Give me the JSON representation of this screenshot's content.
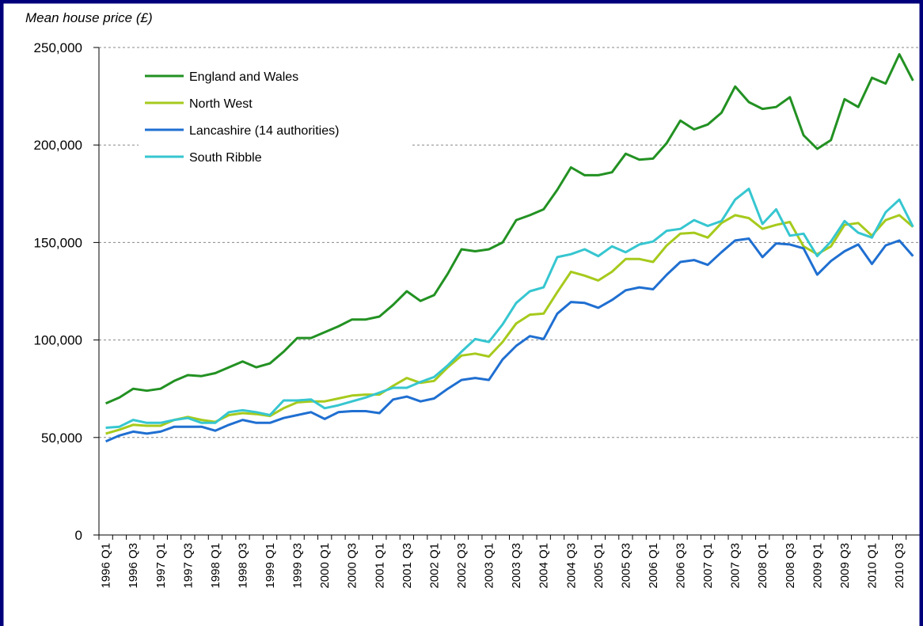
{
  "chart_data": {
    "type": "line",
    "y_axis_label": "Mean house price (£)",
    "categories": [
      "1996 Q1",
      null,
      "1996 Q3",
      null,
      "1997 Q1",
      null,
      "1997 Q3",
      null,
      "1998 Q1",
      null,
      "1998 Q3",
      null,
      "1999 Q1",
      null,
      "1999 Q3",
      null,
      "2000 Q1",
      null,
      "2000 Q3",
      null,
      "2001 Q1",
      null,
      "2001 Q3",
      null,
      "2002 Q1",
      null,
      "2002 Q3",
      null,
      "2003 Q1",
      null,
      "2003 Q3",
      null,
      "2004 Q1",
      null,
      "2004 Q3",
      null,
      "2005 Q1",
      null,
      "2005 Q3",
      null,
      "2006 Q1",
      null,
      "2006 Q3",
      null,
      "2007 Q1",
      null,
      "2007 Q3",
      null,
      "2008 Q1",
      null,
      "2008 Q3",
      null,
      "2009 Q1",
      null,
      "2009 Q3",
      null,
      "2010 Q1",
      null,
      "2010 Q3",
      null
    ],
    "series": [
      {
        "name": "England and Wales",
        "color": "#229122",
        "values": [
          67500,
          70500,
          75000,
          74000,
          75000,
          79000,
          82000,
          81500,
          83000,
          86000,
          89000,
          86000,
          88000,
          94000,
          101000,
          101000,
          104000,
          107000,
          110500,
          110500,
          112000,
          118000,
          125000,
          120000,
          123000,
          134000,
          146500,
          145500,
          146500,
          150000,
          161500,
          164000,
          167000,
          177000,
          188500,
          184500,
          184500,
          186000,
          195500,
          192500,
          193000,
          201000,
          212500,
          208000,
          210500,
          216500,
          230000,
          222000,
          218500,
          219500,
          224500,
          205000,
          198000,
          202500,
          223500,
          219500,
          234500,
          231500,
          246500,
          233000
        ]
      },
      {
        "name": "North West",
        "color": "#a6ca1c",
        "values": [
          52000,
          54000,
          56500,
          56000,
          56000,
          59000,
          60500,
          59000,
          58000,
          61500,
          62500,
          62000,
          61000,
          65000,
          68000,
          68500,
          68500,
          70000,
          71500,
          72000,
          72000,
          76500,
          80500,
          78000,
          79000,
          86000,
          92000,
          93000,
          91500,
          99000,
          108500,
          113000,
          113500,
          124500,
          135000,
          133000,
          130500,
          135000,
          141500,
          141500,
          140000,
          148500,
          154500,
          155000,
          152500,
          160000,
          164000,
          162500,
          157000,
          159000,
          160500,
          148000,
          144000,
          148000,
          159000,
          160000,
          153500,
          161500,
          164000,
          158000
        ]
      },
      {
        "name": "Lancashire (14 authorities)",
        "color": "#1f6fd1",
        "values": [
          48000,
          51000,
          53000,
          52000,
          53000,
          55500,
          55500,
          55500,
          53500,
          56500,
          59000,
          57500,
          57500,
          60000,
          61500,
          63000,
          59500,
          63000,
          63500,
          63500,
          62500,
          69500,
          71000,
          68500,
          70000,
          75000,
          79500,
          80500,
          79500,
          90000,
          97000,
          102000,
          100500,
          113500,
          119500,
          119000,
          116500,
          120500,
          125500,
          127000,
          126000,
          133500,
          140000,
          141000,
          138500,
          145000,
          151000,
          152000,
          142500,
          149500,
          149000,
          147000,
          133500,
          140500,
          145500,
          149000,
          139000,
          148500,
          151000,
          143000
        ]
      },
      {
        "name": "South Ribble",
        "color": "#36c6d0",
        "values": [
          55000,
          55500,
          59000,
          57500,
          57500,
          59000,
          60000,
          57500,
          57500,
          63000,
          64000,
          63000,
          61500,
          69000,
          69000,
          69500,
          65000,
          66500,
          68500,
          70500,
          73000,
          75500,
          75500,
          78500,
          81000,
          87000,
          94000,
          100500,
          99000,
          108000,
          119000,
          125000,
          127000,
          142500,
          144000,
          146500,
          143000,
          148000,
          145000,
          149000,
          150500,
          156000,
          157000,
          161500,
          158500,
          161000,
          172000,
          177500,
          159500,
          167000,
          153500,
          154500,
          143000,
          150500,
          161000,
          155000,
          152500,
          165500,
          172000,
          158000
        ]
      }
    ],
    "ylim": [
      0,
      250000
    ],
    "yticks": [
      0,
      {
        "value": 50000,
        "label": "50,000"
      },
      {
        "value": 100000,
        "label": "100,000"
      },
      {
        "value": 150000,
        "label": "150,000"
      },
      {
        "value": 200000,
        "label": "200,000"
      },
      {
        "value": 250000,
        "label": "250,000"
      }
    ],
    "grid": true,
    "legend": "upper left"
  }
}
